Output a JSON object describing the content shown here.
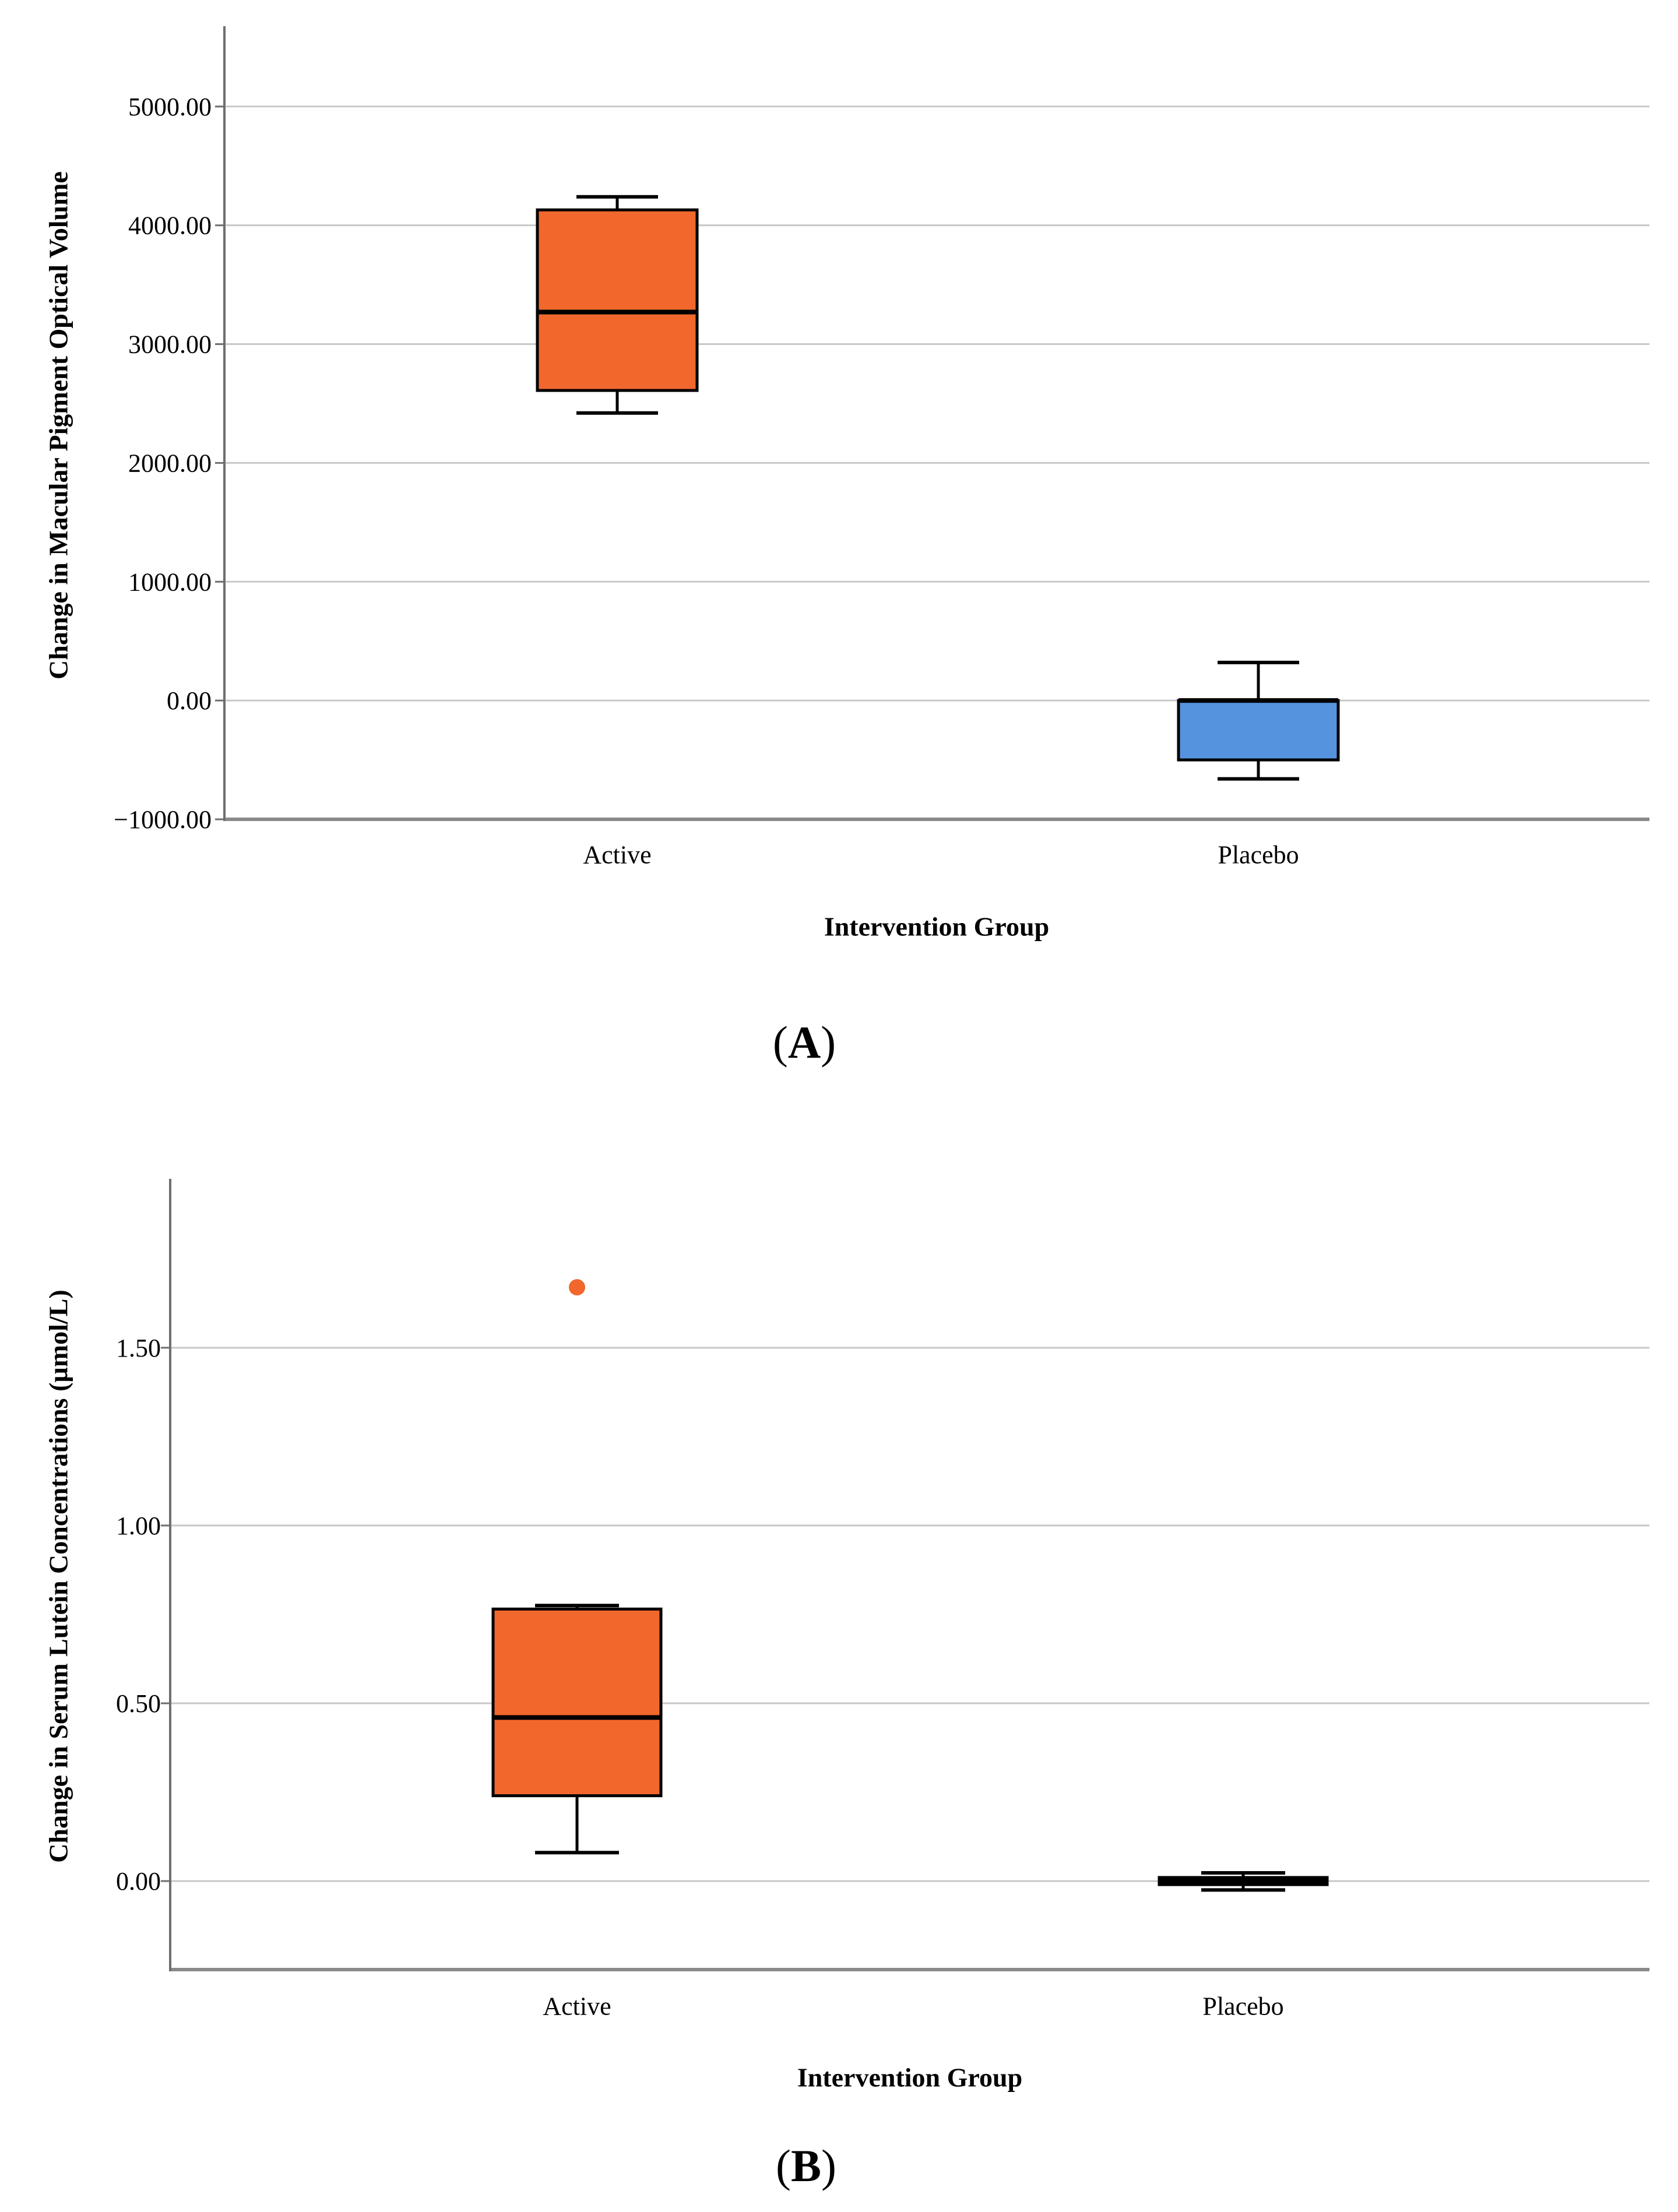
{
  "figure": {
    "background": "#ffffff",
    "grid_color": "#C8C8C8",
    "y_axis_color": "#6E6E6E",
    "x_axis_color": "#8A8A8A",
    "box_border_color": "#000000",
    "panels": [
      "A",
      "B"
    ]
  },
  "chart_data": [
    {
      "type": "box",
      "title": "",
      "xlabel": "Intervention Group",
      "ylabel": "Change in Macular Pigment Optical Volume",
      "categories": [
        "Active",
        "Placebo"
      ],
      "ylim": [
        -1000,
        5676
      ],
      "grid": true,
      "legend": "none",
      "yticks": [
        {
          "label": "5000.00",
          "value": 5000
        },
        {
          "label": "4000.00",
          "value": 4000
        },
        {
          "label": "3000.00",
          "value": 3000
        },
        {
          "label": "2000.00",
          "value": 2000
        },
        {
          "label": "1000.00",
          "value": 1000
        },
        {
          "label": "0.00",
          "value": 0
        },
        {
          "label": "−1000.00",
          "value": -1000
        }
      ],
      "series": [
        {
          "name": "Active",
          "color": "#F2672C",
          "whisker_low": 2420,
          "q1": 2610,
          "median": 3270,
          "q3": 4130,
          "whisker_high": 4240,
          "outliers": []
        },
        {
          "name": "Placebo",
          "color": "#5693DE",
          "whisker_low": -660,
          "q1": -500,
          "median": 0,
          "q3": 0,
          "whisker_high": 320,
          "outliers": []
        }
      ],
      "caption": {
        "prefix": "(",
        "label": "A",
        "suffix": ")"
      }
    },
    {
      "type": "box",
      "title": "",
      "xlabel": "Intervention Group",
      "ylabel": "Change in Serum Lutein Concentrations (µmol/L)",
      "categories": [
        "Active",
        "Placebo"
      ],
      "ylim": [
        -0.249,
        1.975
      ],
      "grid": true,
      "legend": "none",
      "yticks": [
        {
          "label": "1.50",
          "value": 1.5
        },
        {
          "label": "1.00",
          "value": 1.0
        },
        {
          "label": "0.50",
          "value": 0.5
        },
        {
          "label": "0.00",
          "value": 0.0
        }
      ],
      "series": [
        {
          "name": "Active",
          "color": "#F2672C",
          "whisker_low": 0.08,
          "q1": 0.24,
          "median": 0.46,
          "q3": 0.765,
          "whisker_high": 0.775,
          "outliers": [
            1.67
          ]
        },
        {
          "name": "Placebo",
          "color": "#5693DE",
          "whisker_low": -0.025,
          "q1": -0.01,
          "median": 0.0,
          "q3": 0.01,
          "whisker_high": 0.023,
          "outliers": []
        }
      ],
      "caption": {
        "prefix": "(",
        "label": "B",
        "suffix": ")"
      }
    }
  ]
}
